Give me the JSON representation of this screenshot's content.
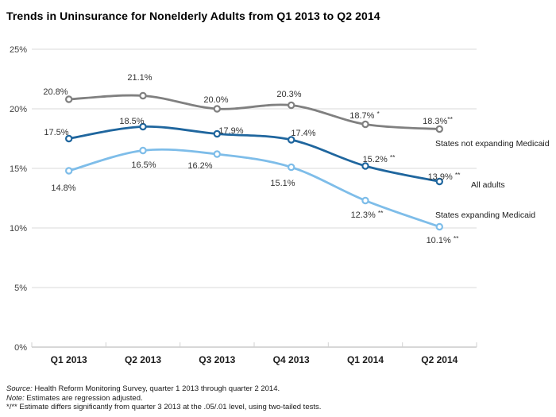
{
  "chart_data": {
    "type": "line",
    "title": "Trends in Uninsurance for Nonelderly Adults from Q1 2013 to Q2 2014",
    "categories": [
      "Q1 2013",
      "Q2 2013",
      "Q3 2013",
      "Q4 2013",
      "Q1 2014",
      "Q2 2014"
    ],
    "y_ticks": [
      "25%",
      "20%",
      "15%",
      "10%",
      "5%",
      "0%"
    ],
    "ylim": [
      0,
      25
    ],
    "grid": true,
    "legend_position": "inline-right",
    "series": [
      {
        "name": "States not expanding Medicaid",
        "color": "#808080",
        "values": [
          20.8,
          21.1,
          20.0,
          20.3,
          18.7,
          18.3
        ],
        "labels": [
          "20.8%",
          "21.1%",
          "20.0%",
          "20.3%",
          "18.7% *",
          "18.3%**"
        ]
      },
      {
        "name": "All adults",
        "color": "#1f669e",
        "values": [
          17.5,
          18.5,
          17.9,
          17.4,
          15.2,
          13.9
        ],
        "labels": [
          "17.5%",
          "18.5%",
          "17.9%",
          "17.4%",
          "15.2% **",
          "13.9% **"
        ]
      },
      {
        "name": "States expanding Medicaid",
        "color": "#7ebde9",
        "values": [
          14.8,
          16.5,
          16.2,
          15.1,
          12.3,
          10.1
        ],
        "labels": [
          "14.8%",
          "16.5%",
          "16.2%",
          "15.1%",
          "12.3% **",
          "10.1% **"
        ]
      }
    ]
  },
  "colors": {
    "grid": "#d9d9d9",
    "axis": "#bfbfbf",
    "tick": "#d2d2d2",
    "data_label": "#333333",
    "axis_label": "#404040",
    "x_label": "#1a1a1a",
    "legend_label": "#1a1a1a",
    "marker_fill": "#ffffff"
  },
  "notes": {
    "source_label": "Source:",
    "source_text": " Health Reform Monitoring Survey, quarter 1 2013 through quarter 2 2014.",
    "note_label": "Note:",
    "note_text": " Estimates are regression adjusted.",
    "sig_text": "*/** Estimate differs significantly from quarter 3 2013 at the .05/.01 level, using two-tailed tests."
  }
}
